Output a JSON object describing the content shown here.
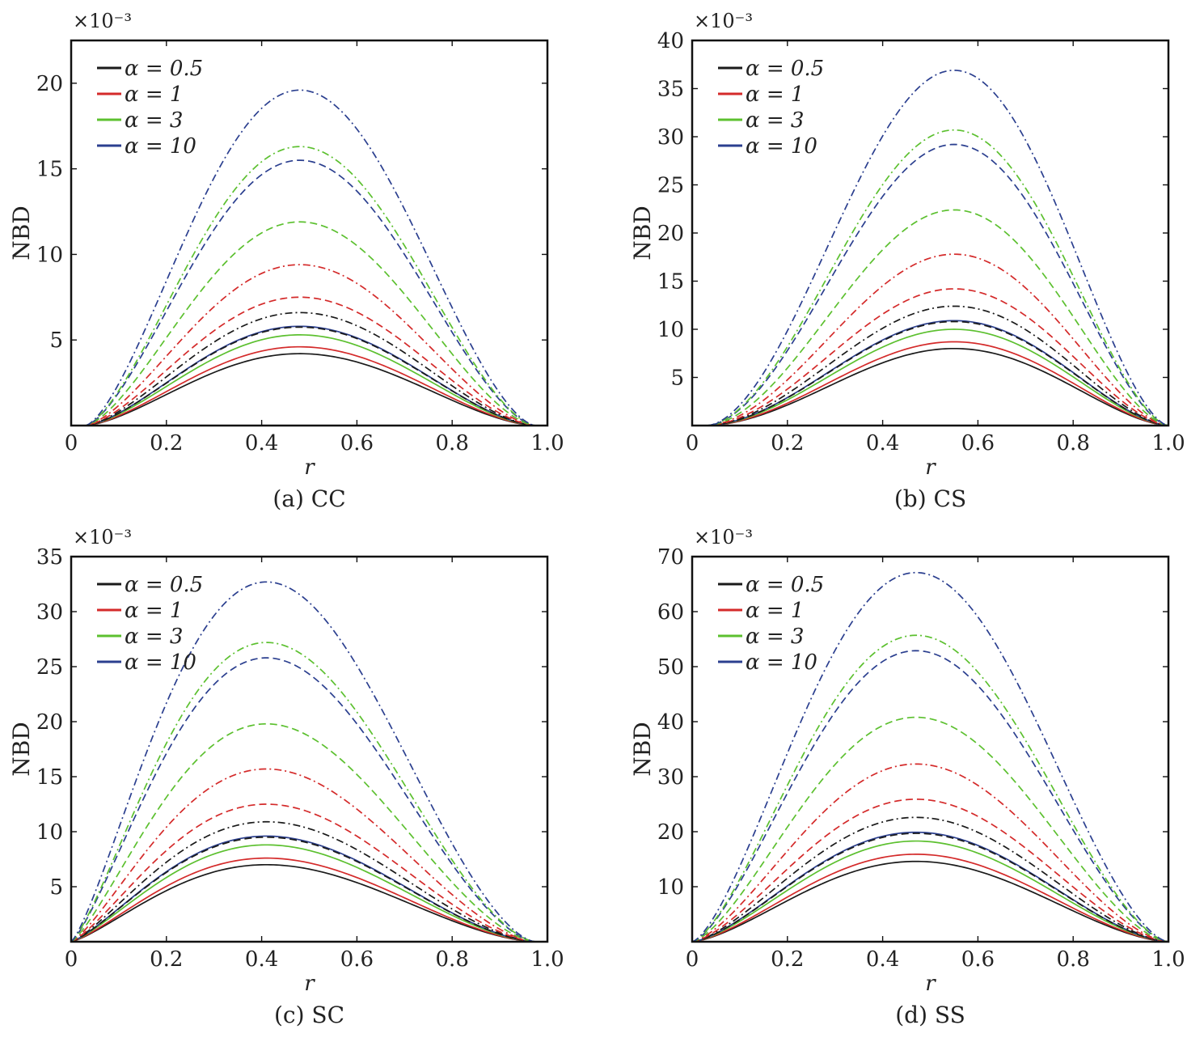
{
  "figure": {
    "series_styles": [
      {
        "color": "#1a1a1a",
        "dash": "solid"
      },
      {
        "color": "#d42a2a",
        "dash": "solid"
      },
      {
        "color": "#5cc02f",
        "dash": "solid"
      },
      {
        "color": "#2b3f8f",
        "dash": "solid"
      }
    ],
    "legend_labels": [
      "α = 0.5",
      "α = 1",
      "α = 3",
      "α = 10"
    ]
  },
  "chart_data": [
    {
      "type": "line",
      "panel": "a",
      "caption": "(a) CC",
      "xlabel": "r",
      "ylabel": "NBD",
      "multiplier": "×10⁻³",
      "xlim": [
        0,
        1.0
      ],
      "ylim": [
        0,
        22.5
      ],
      "xticks": [
        "0",
        "0.2",
        "0.4",
        "0.6",
        "0.8",
        "1.0"
      ],
      "yticks": [
        5,
        10,
        15,
        20
      ],
      "legend": "top-left",
      "x_zero": 0.03,
      "x_one": 0.975,
      "peak_x": 0.48,
      "series": [
        {
          "name": "α = 0.5",
          "style": "solid",
          "color": "#1a1a1a",
          "peak": 4.2
        },
        {
          "name": "α = 1",
          "style": "solid",
          "color": "#d42a2a",
          "peak": 4.6
        },
        {
          "name": "α = 3",
          "style": "solid",
          "color": "#5cc02f",
          "peak": 5.3
        },
        {
          "name": "α = 10",
          "style": "solid",
          "color": "#2b3f8f",
          "peak": 5.8
        },
        {
          "style": "dashed",
          "color": "#1a1a1a",
          "peak": 5.75
        },
        {
          "style": "dashdot",
          "color": "#1a1a1a",
          "peak": 6.6
        },
        {
          "style": "dashed",
          "color": "#d42a2a",
          "peak": 7.5
        },
        {
          "style": "dashdot",
          "color": "#d42a2a",
          "peak": 9.4
        },
        {
          "style": "dashed",
          "color": "#5cc02f",
          "peak": 11.9
        },
        {
          "style": "dashed",
          "color": "#2b3f8f",
          "peak": 15.5
        },
        {
          "style": "dashdot",
          "color": "#5cc02f",
          "peak": 16.3
        },
        {
          "style": "dashdot",
          "color": "#2b3f8f",
          "peak": 19.6
        }
      ]
    },
    {
      "type": "line",
      "panel": "b",
      "caption": "(b) CS",
      "xlabel": "r",
      "ylabel": "NBD",
      "multiplier": "×10⁻³",
      "xlim": [
        0,
        1.0
      ],
      "ylim": [
        0,
        40
      ],
      "xticks": [
        "0",
        "0.2",
        "0.4",
        "0.6",
        "0.8",
        "1.0"
      ],
      "yticks": [
        5,
        10,
        15,
        20,
        25,
        30,
        35,
        40
      ],
      "legend": "top-left",
      "x_zero": 0.03,
      "x_one": 1.0,
      "peak_x": 0.55,
      "series": [
        {
          "name": "α = 0.5",
          "style": "solid",
          "color": "#1a1a1a",
          "peak": 8.0
        },
        {
          "name": "α = 1",
          "style": "solid",
          "color": "#d42a2a",
          "peak": 8.7
        },
        {
          "name": "α = 3",
          "style": "solid",
          "color": "#5cc02f",
          "peak": 10.0
        },
        {
          "name": "α = 10",
          "style": "solid",
          "color": "#2b3f8f",
          "peak": 10.9
        },
        {
          "style": "dashed",
          "color": "#1a1a1a",
          "peak": 10.8
        },
        {
          "style": "dashdot",
          "color": "#1a1a1a",
          "peak": 12.4
        },
        {
          "style": "dashed",
          "color": "#d42a2a",
          "peak": 14.2
        },
        {
          "style": "dashdot",
          "color": "#d42a2a",
          "peak": 17.8
        },
        {
          "style": "dashed",
          "color": "#5cc02f",
          "peak": 22.4
        },
        {
          "style": "dashed",
          "color": "#2b3f8f",
          "peak": 29.2
        },
        {
          "style": "dashdot",
          "color": "#5cc02f",
          "peak": 30.7
        },
        {
          "style": "dashdot",
          "color": "#2b3f8f",
          "peak": 36.9
        }
      ]
    },
    {
      "type": "line",
      "panel": "c",
      "caption": "(c) SC",
      "xlabel": "r",
      "ylabel": "NBD",
      "multiplier": "×10⁻³",
      "xlim": [
        0,
        1.0
      ],
      "ylim": [
        0,
        35
      ],
      "xticks": [
        "0",
        "0.2",
        "0.4",
        "0.6",
        "0.8",
        "1.0"
      ],
      "yticks": [
        5,
        10,
        15,
        20,
        25,
        30,
        35
      ],
      "legend": "top-left",
      "x_zero": 0.0,
      "x_one": 0.975,
      "peak_x": 0.41,
      "series": [
        {
          "name": "α = 0.5",
          "style": "solid",
          "color": "#1a1a1a",
          "peak": 7.0
        },
        {
          "name": "α = 1",
          "style": "solid",
          "color": "#d42a2a",
          "peak": 7.6
        },
        {
          "name": "α = 3",
          "style": "solid",
          "color": "#5cc02f",
          "peak": 8.8
        },
        {
          "name": "α = 10",
          "style": "solid",
          "color": "#2b3f8f",
          "peak": 9.6
        },
        {
          "style": "dashed",
          "color": "#1a1a1a",
          "peak": 9.5
        },
        {
          "style": "dashdot",
          "color": "#1a1a1a",
          "peak": 10.9
        },
        {
          "style": "dashed",
          "color": "#d42a2a",
          "peak": 12.5
        },
        {
          "style": "dashdot",
          "color": "#d42a2a",
          "peak": 15.7
        },
        {
          "style": "dashed",
          "color": "#5cc02f",
          "peak": 19.8
        },
        {
          "style": "dashed",
          "color": "#2b3f8f",
          "peak": 25.8
        },
        {
          "style": "dashdot",
          "color": "#5cc02f",
          "peak": 27.2
        },
        {
          "style": "dashdot",
          "color": "#2b3f8f",
          "peak": 32.7
        }
      ]
    },
    {
      "type": "line",
      "panel": "d",
      "caption": "(d) SS",
      "xlabel": "r",
      "ylabel": "NBD",
      "multiplier": "×10⁻³",
      "xlim": [
        0,
        1.0
      ],
      "ylim": [
        0,
        70
      ],
      "xticks": [
        "0",
        "0.2",
        "0.4",
        "0.6",
        "0.8",
        "1.0"
      ],
      "yticks": [
        10,
        20,
        30,
        40,
        50,
        60,
        70
      ],
      "legend": "top-left",
      "x_zero": 0.0,
      "x_one": 1.0,
      "peak_x": 0.47,
      "series": [
        {
          "name": "α = 0.5",
          "style": "solid",
          "color": "#1a1a1a",
          "peak": 14.6
        },
        {
          "name": "α = 1",
          "style": "solid",
          "color": "#d42a2a",
          "peak": 15.9
        },
        {
          "name": "α = 3",
          "style": "solid",
          "color": "#5cc02f",
          "peak": 18.3
        },
        {
          "name": "α = 10",
          "style": "solid",
          "color": "#2b3f8f",
          "peak": 19.9
        },
        {
          "style": "dashed",
          "color": "#1a1a1a",
          "peak": 19.7
        },
        {
          "style": "dashdot",
          "color": "#1a1a1a",
          "peak": 22.6
        },
        {
          "style": "dashed",
          "color": "#d42a2a",
          "peak": 25.9
        },
        {
          "style": "dashdot",
          "color": "#d42a2a",
          "peak": 32.3
        },
        {
          "style": "dashed",
          "color": "#5cc02f",
          "peak": 40.8
        },
        {
          "style": "dashed",
          "color": "#2b3f8f",
          "peak": 52.9
        },
        {
          "style": "dashdot",
          "color": "#5cc02f",
          "peak": 55.7
        },
        {
          "style": "dashdot",
          "color": "#2b3f8f",
          "peak": 67.1
        }
      ]
    }
  ]
}
